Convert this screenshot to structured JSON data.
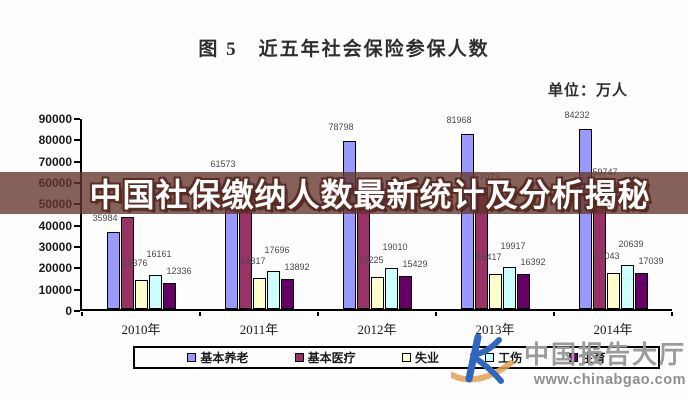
{
  "figure": {
    "title": "图 5　近五年社会保险参保人数",
    "unit_label": "单位：万人"
  },
  "overlay": {
    "headline": "中国社保缴纳人数最新统计及分析揭秘",
    "banner_color": "rgba(100,52,44,0.78)"
  },
  "watermark": {
    "site_name": "中国报告大厅",
    "site_url": "www.chinabgao.com",
    "logo_blue": "#2f66c0",
    "swoosh_orange": "#e8a050"
  },
  "chart_data": {
    "type": "bar",
    "title": "图 5 近五年社会保险参保人数",
    "unit": "万人",
    "categories": [
      "2010年",
      "2011年",
      "2012年",
      "2013年",
      "2014年"
    ],
    "series": [
      {
        "name": "基本养老",
        "color": "#9999ff",
        "values": [
          35984,
          61573,
          78798,
          81968,
          84232
        ]
      },
      {
        "name": "基本医疗",
        "color": "#993366",
        "values": [
          43263,
          47343,
          53641,
          57073,
          59747
        ]
      },
      {
        "name": "失业",
        "color": "#ffffcc",
        "values": [
          13376,
          14317,
          15225,
          16417,
          17043
        ]
      },
      {
        "name": "工伤",
        "color": "#ccffff",
        "values": [
          16161,
          17696,
          19010,
          19917,
          20639
        ]
      },
      {
        "name": "生育",
        "color": "#660066",
        "values": [
          12336,
          13892,
          15429,
          16392,
          17039
        ]
      }
    ],
    "ylim": [
      0,
      90000
    ],
    "ytick_step": 10000,
    "grid": false,
    "legend_position": "bottom",
    "bar_labels_shown": true
  }
}
